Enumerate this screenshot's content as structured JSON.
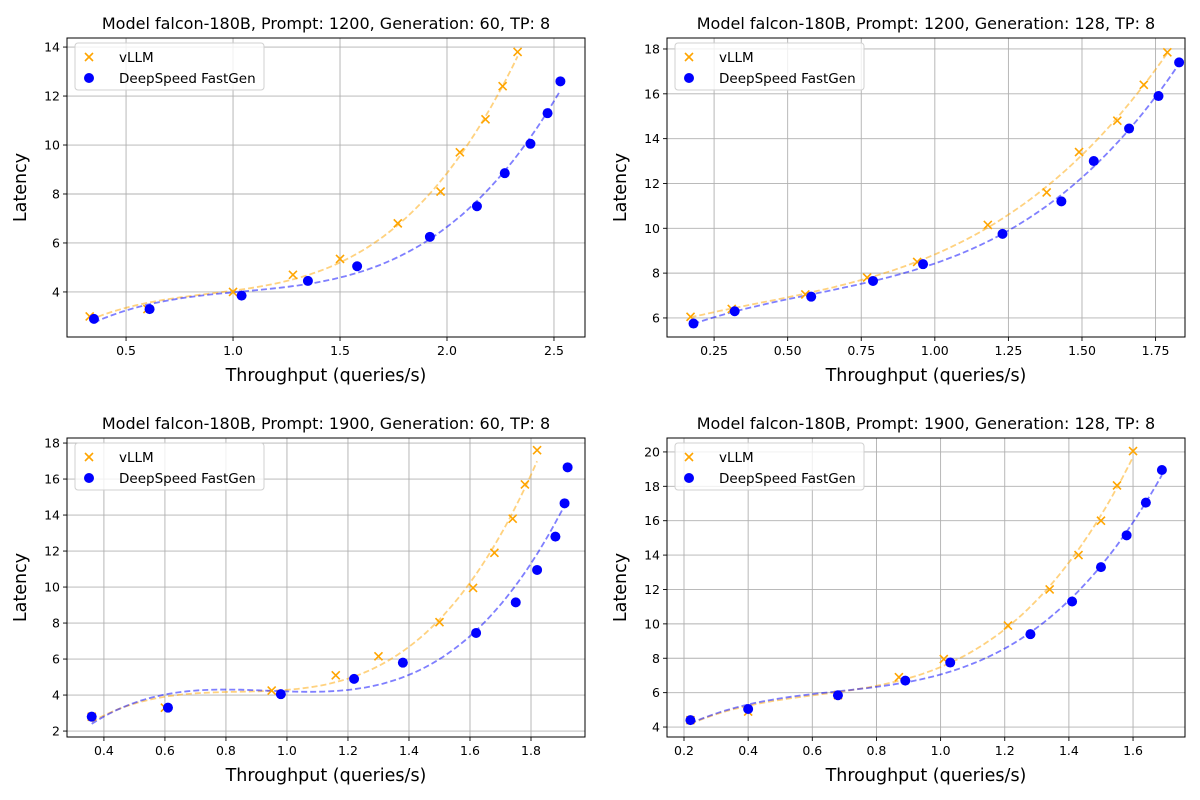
{
  "figure": {
    "legend_labels": [
      "vLLM",
      "DeepSpeed FastGen"
    ],
    "colors": {
      "vllm": "#ffa500",
      "deepspeed": "#0000ff",
      "grid": "#b0b0b0"
    }
  },
  "chart_data": [
    {
      "type": "scatter",
      "title": "Model falcon-180B, Prompt: 1200, Generation: 60, TP: 8",
      "xlabel": "Throughput (queries/s)",
      "ylabel": "Latency",
      "xlim": [
        0.224,
        2.645
      ],
      "ylim": [
        2.16,
        14.37
      ],
      "xticks": [
        0.5,
        1.0,
        1.5,
        2.0,
        2.5
      ],
      "xtick_labels": [
        "0.5",
        "1.0",
        "1.5",
        "2.0",
        "2.5"
      ],
      "yticks": [
        4,
        6,
        8,
        10,
        12,
        14
      ],
      "ytick_labels": [
        "4",
        "6",
        "8",
        "10",
        "12",
        "14"
      ],
      "grid": true,
      "legend": "top-left",
      "series": [
        {
          "name": "vLLM",
          "marker": "x",
          "fit_line": "dashed",
          "x": [
            0.33,
            0.6,
            1.0,
            1.28,
            1.5,
            1.77,
            1.97,
            2.06,
            2.18,
            2.26,
            2.33
          ],
          "y": [
            3.0,
            3.3,
            4.0,
            4.7,
            5.35,
            6.8,
            8.1,
            9.7,
            11.05,
            12.4,
            13.8
          ]
        },
        {
          "name": "DeepSpeed FastGen",
          "marker": "o",
          "fit_line": "dashed",
          "x": [
            0.35,
            0.61,
            1.04,
            1.35,
            1.58,
            1.92,
            2.14,
            2.27,
            2.39,
            2.47,
            2.53
          ],
          "y": [
            2.9,
            3.3,
            3.85,
            4.45,
            5.05,
            6.25,
            7.5,
            8.85,
            10.05,
            11.3,
            12.6
          ]
        }
      ]
    },
    {
      "type": "scatter",
      "title": "Model falcon-180B, Prompt: 1200, Generation: 128, TP: 8",
      "xlabel": "Throughput (queries/s)",
      "ylabel": "Latency",
      "xlim": [
        0.09,
        1.85
      ],
      "ylim": [
        5.15,
        18.49
      ],
      "xticks": [
        0.25,
        0.5,
        0.75,
        1.0,
        1.25,
        1.5,
        1.75
      ],
      "xtick_labels": [
        "0.25",
        "0.50",
        "0.75",
        "1.00",
        "1.25",
        "1.50",
        "1.75"
      ],
      "yticks": [
        6,
        8,
        10,
        12,
        14,
        16,
        18
      ],
      "ytick_labels": [
        "6",
        "8",
        "10",
        "12",
        "14",
        "16",
        "18"
      ],
      "grid": true,
      "legend": "top-left",
      "series": [
        {
          "name": "vLLM",
          "marker": "x",
          "fit_line": "dashed",
          "x": [
            0.17,
            0.31,
            0.56,
            0.77,
            0.94,
            1.18,
            1.38,
            1.49,
            1.62,
            1.71,
            1.79
          ],
          "y": [
            6.05,
            6.4,
            7.05,
            7.8,
            8.5,
            10.15,
            11.6,
            13.4,
            14.8,
            16.4,
            17.85
          ]
        },
        {
          "name": "DeepSpeed FastGen",
          "marker": "o",
          "fit_line": "dashed",
          "x": [
            0.18,
            0.32,
            0.58,
            0.79,
            0.96,
            1.23,
            1.43,
            1.54,
            1.66,
            1.76,
            1.83
          ],
          "y": [
            5.75,
            6.3,
            6.95,
            7.65,
            8.4,
            9.75,
            11.2,
            13.0,
            14.45,
            15.9,
            17.4
          ]
        }
      ]
    },
    {
      "type": "scatter",
      "title": "Model falcon-180B, Prompt: 1900, Generation: 60, TP: 8",
      "xlabel": "Throughput (queries/s)",
      "ylabel": "Latency",
      "xlim": [
        0.279,
        1.977
      ],
      "ylim": [
        1.67,
        18.28
      ],
      "xticks": [
        0.4,
        0.6,
        0.8,
        1.0,
        1.2,
        1.4,
        1.6,
        1.8
      ],
      "xtick_labels": [
        "0.4",
        "0.6",
        "0.8",
        "1.0",
        "1.2",
        "1.4",
        "1.6",
        "1.8"
      ],
      "yticks": [
        2,
        4,
        6,
        8,
        10,
        12,
        14,
        16,
        18
      ],
      "ytick_labels": [
        "2",
        "4",
        "6",
        "8",
        "10",
        "12",
        "14",
        "16",
        "18"
      ],
      "grid": true,
      "legend": "top-left",
      "series": [
        {
          "name": "vLLM",
          "marker": "x",
          "fit_line": "dashed",
          "x": [
            0.36,
            0.6,
            0.95,
            1.16,
            1.3,
            1.5,
            1.61,
            1.68,
            1.74,
            1.78,
            1.82
          ],
          "y": [
            2.8,
            3.3,
            4.25,
            5.1,
            6.15,
            8.05,
            9.95,
            11.9,
            13.8,
            15.7,
            17.6
          ]
        },
        {
          "name": "DeepSpeed FastGen",
          "marker": "o",
          "fit_line": "dashed",
          "x": [
            0.36,
            0.61,
            0.98,
            1.22,
            1.38,
            1.62,
            1.75,
            1.82,
            1.88,
            1.91,
            1.92
          ],
          "y": [
            2.8,
            3.3,
            4.05,
            4.9,
            5.8,
            7.45,
            9.15,
            10.95,
            12.8,
            14.65,
            16.65
          ]
        }
      ]
    },
    {
      "type": "scatter",
      "title": "Model falcon-180B, Prompt: 1900, Generation: 128, TP: 8",
      "xlabel": "Throughput (queries/s)",
      "ylabel": "Latency",
      "xlim": [
        0.147,
        1.762
      ],
      "ylim": [
        3.42,
        20.81
      ],
      "xticks": [
        0.2,
        0.4,
        0.6,
        0.8,
        1.0,
        1.2,
        1.4,
        1.6
      ],
      "xtick_labels": [
        "0.2",
        "0.4",
        "0.6",
        "0.8",
        "1.0",
        "1.2",
        "1.4",
        "1.6"
      ],
      "yticks": [
        4,
        6,
        8,
        10,
        12,
        14,
        16,
        18,
        20
      ],
      "ytick_labels": [
        "4",
        "6",
        "8",
        "10",
        "12",
        "14",
        "16",
        "18",
        "20"
      ],
      "grid": true,
      "legend": "top-left",
      "series": [
        {
          "name": "vLLM",
          "marker": "x",
          "fit_line": "dashed",
          "x": [
            0.22,
            0.4,
            0.68,
            0.87,
            1.01,
            1.21,
            1.34,
            1.43,
            1.5,
            1.55,
            1.6
          ],
          "y": [
            4.4,
            4.9,
            5.85,
            6.9,
            7.95,
            9.9,
            12.0,
            14.0,
            16.0,
            18.05,
            20.05
          ]
        },
        {
          "name": "DeepSpeed FastGen",
          "marker": "o",
          "fit_line": "dashed",
          "x": [
            0.22,
            0.4,
            0.68,
            0.89,
            1.03,
            1.28,
            1.41,
            1.5,
            1.58,
            1.64,
            1.69
          ],
          "y": [
            4.4,
            5.05,
            5.85,
            6.7,
            7.75,
            9.4,
            11.3,
            13.3,
            15.15,
            17.05,
            18.95
          ]
        }
      ]
    }
  ]
}
